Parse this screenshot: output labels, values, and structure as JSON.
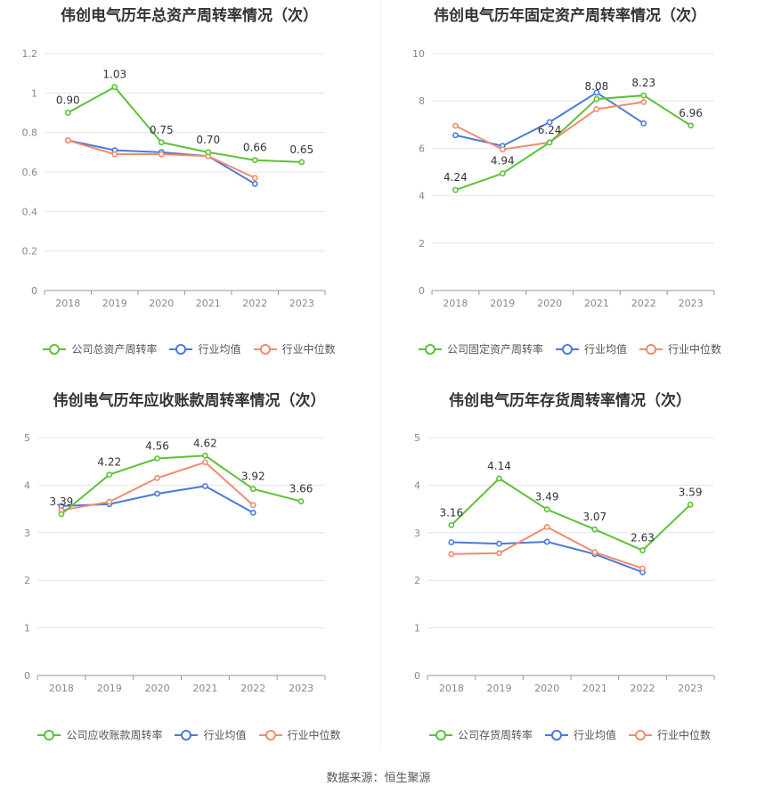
{
  "source": "数据来源：恒生聚源",
  "colors": {
    "company": "#5cc236",
    "avg": "#4a7bd6",
    "median": "#f08c6e",
    "grid": "#e4e4ec",
    "axis": "#999999"
  },
  "chart_data": [
    {
      "type": "line",
      "title": "伟创电气历年总资产周转率情况（次）",
      "categories": [
        "2018",
        "2019",
        "2020",
        "2021",
        "2022",
        "2023"
      ],
      "ylim": [
        0,
        1.2
      ],
      "yticks": [
        "0",
        "0.2",
        "0.4",
        "0.6",
        "0.8",
        "1",
        "1.2"
      ],
      "grid": true,
      "legend_position": "bottom",
      "series": [
        {
          "name": "公司总资产周转率",
          "values": [
            0.9,
            1.03,
            0.75,
            0.7,
            0.66,
            0.65
          ],
          "labels": [
            "0.90",
            "1.03",
            "0.75",
            "0.70",
            "0.66",
            "0.65"
          ]
        },
        {
          "name": "行业均值",
          "values": [
            0.76,
            0.71,
            0.7,
            0.68,
            0.54,
            null
          ]
        },
        {
          "name": "行业中位数",
          "values": [
            0.76,
            0.69,
            0.69,
            0.68,
            0.57,
            null
          ]
        }
      ]
    },
    {
      "type": "line",
      "title": "伟创电气历年固定资产周转率情况（次）",
      "categories": [
        "2018",
        "2019",
        "2020",
        "2021",
        "2022",
        "2023"
      ],
      "ylim": [
        0,
        10
      ],
      "yticks": [
        "0",
        "2",
        "4",
        "6",
        "8",
        "10"
      ],
      "grid": true,
      "legend_position": "bottom",
      "series": [
        {
          "name": "公司固定资产周转率",
          "values": [
            4.24,
            4.94,
            6.24,
            8.08,
            8.23,
            6.96
          ],
          "labels": [
            "4.24",
            "4.94",
            "6.24",
            "8.08",
            "8.23",
            "6.96"
          ]
        },
        {
          "name": "行业均值",
          "values": [
            6.55,
            6.1,
            7.1,
            8.35,
            7.05,
            null
          ]
        },
        {
          "name": "行业中位数",
          "values": [
            6.95,
            5.95,
            6.25,
            7.65,
            7.95,
            null
          ]
        }
      ]
    },
    {
      "type": "line",
      "title": "伟创电气历年应收账款周转率情况（次）",
      "categories": [
        "2018",
        "2019",
        "2020",
        "2021",
        "2022",
        "2023"
      ],
      "ylim": [
        0,
        5
      ],
      "yticks": [
        "0",
        "1",
        "2",
        "3",
        "4",
        "5"
      ],
      "grid": true,
      "legend_position": "bottom",
      "series": [
        {
          "name": "公司应收账款周转率",
          "values": [
            3.39,
            4.22,
            4.56,
            4.62,
            3.92,
            3.66
          ],
          "labels": [
            "3.39",
            "4.22",
            "4.56",
            "4.62",
            "3.92",
            "3.66"
          ]
        },
        {
          "name": "行业均值",
          "values": [
            3.56,
            3.6,
            3.82,
            3.98,
            3.42,
            null
          ]
        },
        {
          "name": "行业中位数",
          "values": [
            3.47,
            3.65,
            4.15,
            4.48,
            3.58,
            null
          ]
        }
      ]
    },
    {
      "type": "line",
      "title": "伟创电气历年存货周转率情况（次）",
      "categories": [
        "2018",
        "2019",
        "2020",
        "2021",
        "2022",
        "2023"
      ],
      "ylim": [
        0,
        5
      ],
      "yticks": [
        "0",
        "1",
        "2",
        "3",
        "4",
        "5"
      ],
      "grid": true,
      "legend_position": "bottom",
      "series": [
        {
          "name": "公司存货周转率",
          "values": [
            3.16,
            4.14,
            3.49,
            3.07,
            2.63,
            3.59
          ],
          "labels": [
            "3.16",
            "4.14",
            "3.49",
            "3.07",
            "2.63",
            "3.59"
          ]
        },
        {
          "name": "行业均值",
          "values": [
            2.8,
            2.77,
            2.81,
            2.55,
            2.17,
            null
          ]
        },
        {
          "name": "行业中位数",
          "values": [
            2.55,
            2.57,
            3.12,
            2.59,
            2.25,
            null
          ]
        }
      ]
    }
  ]
}
